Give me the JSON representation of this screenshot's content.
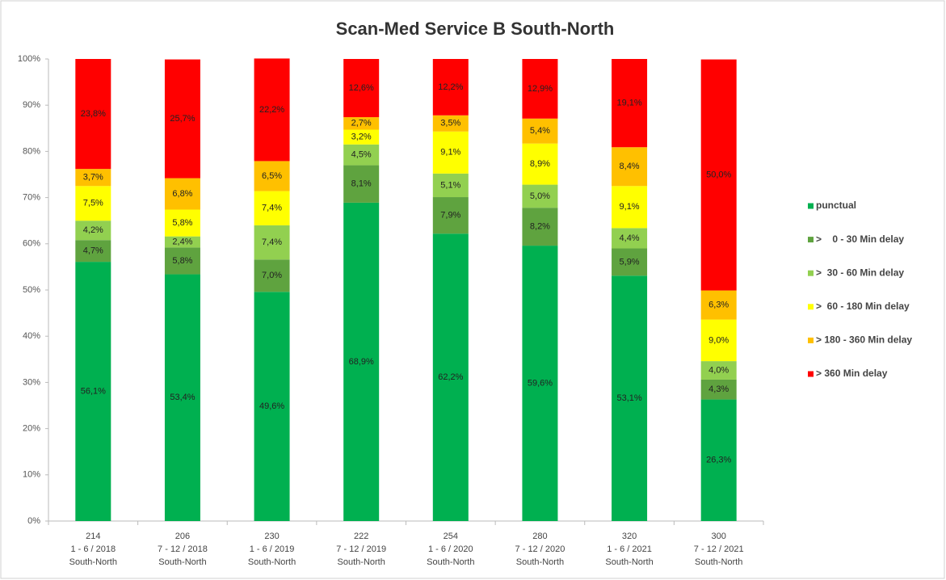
{
  "chart_data": {
    "type": "stacked_bar",
    "title": "Scan-Med Service B South-North",
    "categories": [
      [
        "214",
        "1 - 6 / 2018",
        "South-North"
      ],
      [
        "206",
        "7 - 12 / 2018",
        "South-North"
      ],
      [
        "230",
        "1 - 6 / 2019",
        "South-North"
      ],
      [
        "222",
        "7 - 12 / 2019",
        "South-North"
      ],
      [
        "254",
        "1 - 6 / 2020",
        "South-North"
      ],
      [
        "280",
        "7 - 12 / 2020",
        "South-North"
      ],
      [
        "320",
        "1 - 6 / 2021",
        "South-North"
      ],
      [
        "300",
        "7 - 12 / 2021",
        "South-North"
      ]
    ],
    "series": [
      {
        "name": "punctual",
        "color": "#00b050",
        "values": [
          56.1,
          53.4,
          49.6,
          68.9,
          62.2,
          59.6,
          53.1,
          26.3
        ],
        "value_labels": [
          "56,1%",
          "53,4%",
          "49,6%",
          "68,9%",
          "62,2%",
          "59,6%",
          "53,1%",
          "26,3%"
        ]
      },
      {
        "name": ">    0 - 30 Min delay",
        "color": "#5fa33f",
        "values": [
          4.7,
          5.8,
          7.0,
          8.1,
          7.9,
          8.2,
          5.9,
          4.3
        ],
        "value_labels": [
          "4,7%",
          "5,8%",
          "7,0%",
          "8,1%",
          "7,9%",
          "8,2%",
          "5,9%",
          "4,3%"
        ]
      },
      {
        "name": ">  30 - 60 Min delay",
        "color": "#92d050",
        "values": [
          4.2,
          2.4,
          7.4,
          4.5,
          5.1,
          5.0,
          4.4,
          4.0
        ],
        "value_labels": [
          "4,2%",
          "2,4%",
          "7,4%",
          "4,5%",
          "5,1%",
          "5,0%",
          "4,4%",
          "4,0%"
        ]
      },
      {
        "name": ">  60 - 180 Min delay",
        "color": "#ffff00",
        "values": [
          7.5,
          5.8,
          7.4,
          3.2,
          9.1,
          8.9,
          9.1,
          9.0
        ],
        "value_labels": [
          "7,5%",
          "5,8%",
          "7,4%",
          "3,2%",
          "9,1%",
          "8,9%",
          "9,1%",
          "9,0%"
        ]
      },
      {
        "name": "> 180 - 360 Min delay",
        "color": "#ffc000",
        "values": [
          3.7,
          6.8,
          6.5,
          2.7,
          3.5,
          5.4,
          8.4,
          6.3
        ],
        "value_labels": [
          "3,7%",
          "6,8%",
          "6,5%",
          "2,7%",
          "3,5%",
          "5,4%",
          "8,4%",
          "6,3%"
        ]
      },
      {
        "name": "> 360 Min delay",
        "color": "#ff0000",
        "values": [
          23.8,
          25.7,
          22.2,
          12.6,
          12.2,
          12.9,
          19.1,
          50.0
        ],
        "value_labels": [
          "23,8%",
          "25,7%",
          "22,2%",
          "12,6%",
          "12,2%",
          "12,9%",
          "19,1%",
          "50,0%"
        ]
      }
    ],
    "ylim": [
      0,
      100
    ],
    "yticks": [
      {
        "value": 0,
        "label": "0%"
      },
      {
        "value": 10,
        "label": "10%"
      },
      {
        "value": 20,
        "label": "20%"
      },
      {
        "value": 30,
        "label": "30%"
      },
      {
        "value": 40,
        "label": "40%"
      },
      {
        "value": 50,
        "label": "50%"
      },
      {
        "value": 60,
        "label": "60%"
      },
      {
        "value": 70,
        "label": "70%"
      },
      {
        "value": 80,
        "label": "80%"
      },
      {
        "value": 90,
        "label": "90%"
      },
      {
        "value": 100,
        "label": "100%"
      }
    ],
    "grid": false,
    "legend": "right"
  }
}
